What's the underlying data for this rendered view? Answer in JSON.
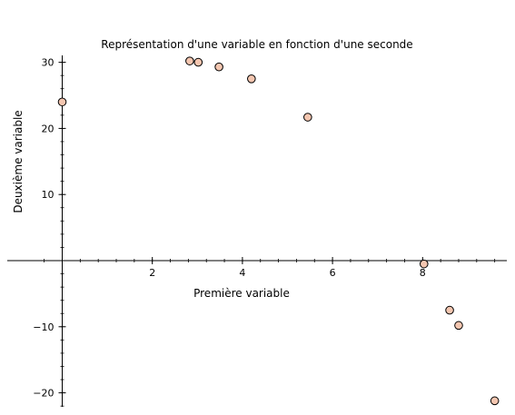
{
  "chart_data": {
    "type": "scatter",
    "title": "Représentation d'une variable en fonction d'une seconde",
    "xlabel": "Première variable",
    "ylabel": "Deuxième variable",
    "xlim": [
      0,
      9.7
    ],
    "ylim": [
      -22,
      31
    ],
    "x_ticks": [
      2,
      4,
      6,
      8
    ],
    "x_tick_labels": [
      "2",
      "4",
      "6",
      "8"
    ],
    "y_ticks": [
      -20,
      -10,
      10,
      20,
      30
    ],
    "y_tick_labels": [
      "−20",
      "−10",
      "10",
      "20",
      "30"
    ],
    "grid": false,
    "axes_style": "cross-through-origin",
    "marker": {
      "fill": "#f4c6b0",
      "edge": "#000000"
    },
    "points": [
      {
        "x": 0.0,
        "y": 24.0
      },
      {
        "x": 2.83,
        "y": 30.2
      },
      {
        "x": 3.02,
        "y": 30.0
      },
      {
        "x": 3.48,
        "y": 29.3
      },
      {
        "x": 4.2,
        "y": 27.5
      },
      {
        "x": 5.45,
        "y": 21.7
      },
      {
        "x": 8.03,
        "y": -0.5
      },
      {
        "x": 8.6,
        "y": -7.5
      },
      {
        "x": 8.8,
        "y": -9.8
      },
      {
        "x": 9.6,
        "y": -21.2
      }
    ]
  }
}
